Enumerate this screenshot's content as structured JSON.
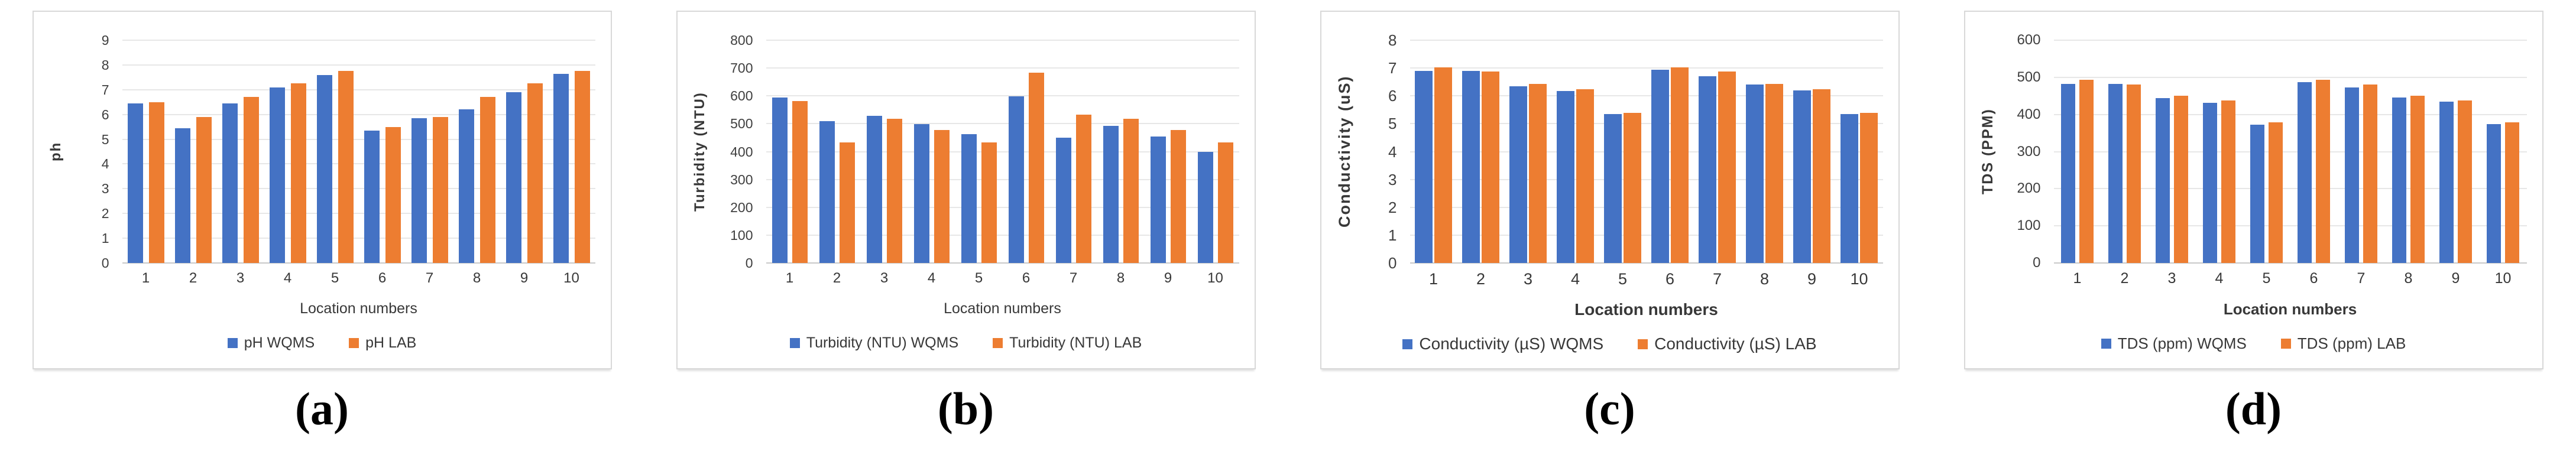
{
  "figure": {
    "background": "#ffffff",
    "panels": [
      {
        "caption": "(a)"
      },
      {
        "caption": "(b)"
      },
      {
        "caption": "(c)"
      },
      {
        "caption": "(d)"
      }
    ]
  },
  "colors": {
    "wqms_blue": "#4472C4",
    "lab_orange": "#ED7D31",
    "gridline": "#E7E7E7",
    "axis_text": "#404040"
  },
  "chart_data": [
    {
      "type": "bar",
      "panel": "a",
      "title": "",
      "ylabel": "ph",
      "xlabel": "Location numbers",
      "categories": [
        "1",
        "2",
        "3",
        "4",
        "5",
        "6",
        "7",
        "8",
        "9",
        "10"
      ],
      "ylim": [
        0,
        9
      ],
      "yticks": [
        0,
        1,
        2,
        3,
        4,
        5,
        6,
        7,
        8,
        9
      ],
      "grid": true,
      "legend_position": "bottom",
      "series": [
        {
          "name": "pH WQMS",
          "color": "#4472C4",
          "values": [
            6.45,
            5.45,
            6.45,
            7.1,
            7.6,
            5.35,
            5.85,
            6.2,
            6.9,
            7.65
          ]
        },
        {
          "name": "pH LAB",
          "color": "#ED7D31",
          "values": [
            6.5,
            5.9,
            6.7,
            7.25,
            7.75,
            5.5,
            5.9,
            6.7,
            7.25,
            7.75
          ]
        }
      ]
    },
    {
      "type": "bar",
      "panel": "b",
      "title": "",
      "ylabel": "Turbidity (NTU)",
      "xlabel": "Location numbers",
      "categories": [
        "1",
        "2",
        "3",
        "4",
        "5",
        "6",
        "7",
        "8",
        "9",
        "10"
      ],
      "ylim": [
        0,
        800
      ],
      "yticks": [
        0,
        100,
        200,
        300,
        400,
        500,
        600,
        700,
        800
      ],
      "grid": true,
      "legend_position": "bottom",
      "series": [
        {
          "name": "Turbidity (NTU) WQMS",
          "color": "#4472C4",
          "values": [
            595,
            510,
            528,
            498,
            463,
            598,
            450,
            492,
            455,
            400
          ]
        },
        {
          "name": "Turbidity (NTU) LAB",
          "color": "#ED7D31",
          "values": [
            582,
            433,
            517,
            478,
            433,
            683,
            533,
            517,
            478,
            433
          ]
        }
      ]
    },
    {
      "type": "bar",
      "panel": "c",
      "title": "",
      "ylabel": "Conductivity (uS)",
      "xlabel": "Location numbers",
      "categories": [
        "1",
        "2",
        "3",
        "4",
        "5",
        "6",
        "7",
        "8",
        "9",
        "10"
      ],
      "ylim": [
        0,
        8
      ],
      "yticks": [
        0,
        1,
        2,
        3,
        4,
        5,
        6,
        7,
        8
      ],
      "grid": true,
      "legend_position": "bottom",
      "series": [
        {
          "name": "Conductivity (µS) WQMS",
          "color": "#4472C4",
          "values": [
            6.9,
            6.9,
            6.35,
            6.17,
            5.35,
            6.93,
            6.7,
            6.4,
            6.2,
            5.35
          ]
        },
        {
          "name": "Conductivity (µS) LAB",
          "color": "#ED7D31",
          "values": [
            7.02,
            6.87,
            6.42,
            6.23,
            5.4,
            7.02,
            6.87,
            6.42,
            6.23,
            5.4
          ]
        }
      ]
    },
    {
      "type": "bar",
      "panel": "d",
      "title": "",
      "ylabel": "TDS (PPM)",
      "xlabel": "Location numbers",
      "categories": [
        "1",
        "2",
        "3",
        "4",
        "5",
        "6",
        "7",
        "8",
        "9",
        "10"
      ],
      "ylim": [
        0,
        600
      ],
      "yticks": [
        0,
        100,
        200,
        300,
        400,
        500,
        600
      ],
      "grid": true,
      "legend_position": "bottom",
      "series": [
        {
          "name": "TDS (ppm) WQMS",
          "color": "#4472C4",
          "values": [
            483,
            483,
            444,
            431,
            372,
            487,
            472,
            446,
            434,
            374
          ]
        },
        {
          "name": "TDS (ppm) LAB",
          "color": "#ED7D31",
          "values": [
            493,
            481,
            451,
            437,
            379,
            493,
            481,
            451,
            437,
            379
          ]
        }
      ]
    }
  ]
}
